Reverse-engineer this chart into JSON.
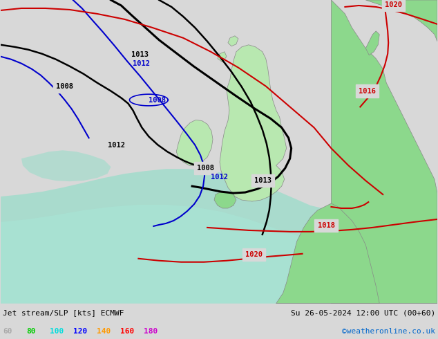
{
  "title_left": "Jet stream/SLP [kts] ECMWF",
  "title_right": "Su 26-05-2024 12:00 UTC (00+60)",
  "credit": "©weatheronline.co.uk",
  "legend_values": [
    "60",
    "80",
    "100",
    "120",
    "140",
    "160",
    "180"
  ],
  "legend_colors": [
    "#aaaaaa",
    "#00cc00",
    "#00dddd",
    "#0000ff",
    "#ff9900",
    "#ff0000",
    "#cc00cc"
  ],
  "bg_color": "#d8d8d8",
  "land_green_light": "#b8e8b0",
  "land_green_medium": "#8cd88c",
  "land_green_dark": "#70c870",
  "sea_color": "#c8c8d8",
  "jet_teal": "#90ddc8",
  "jet_teal2": "#a8e8d8",
  "black": "#000000",
  "blue": "#0000cc",
  "red": "#cc0000",
  "fig_width": 6.34,
  "fig_height": 4.9,
  "dpi": 100
}
